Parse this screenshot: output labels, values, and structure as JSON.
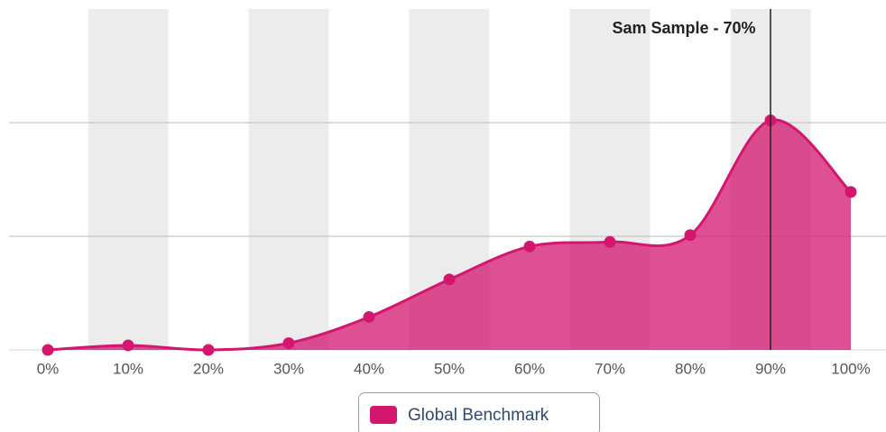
{
  "chart_data": {
    "type": "areaspline",
    "categories": [
      "0%",
      "10%",
      "20%",
      "30%",
      "40%",
      "50%",
      "60%",
      "70%",
      "80%",
      "90%",
      "100%"
    ],
    "series": [
      {
        "name": "Global Benchmark",
        "color": "#d4166f",
        "values": [
          0,
          0.04,
          0,
          0.06,
          0.29,
          0.62,
          0.91,
          0.95,
          1.01,
          2.02,
          1.39
        ]
      }
    ],
    "ylim": [
      0,
      3
    ],
    "yticks": [
      0,
      1,
      2
    ],
    "grid": true,
    "annotation": {
      "text": "Sam Sample - 70%",
      "category": "90%"
    }
  }
}
